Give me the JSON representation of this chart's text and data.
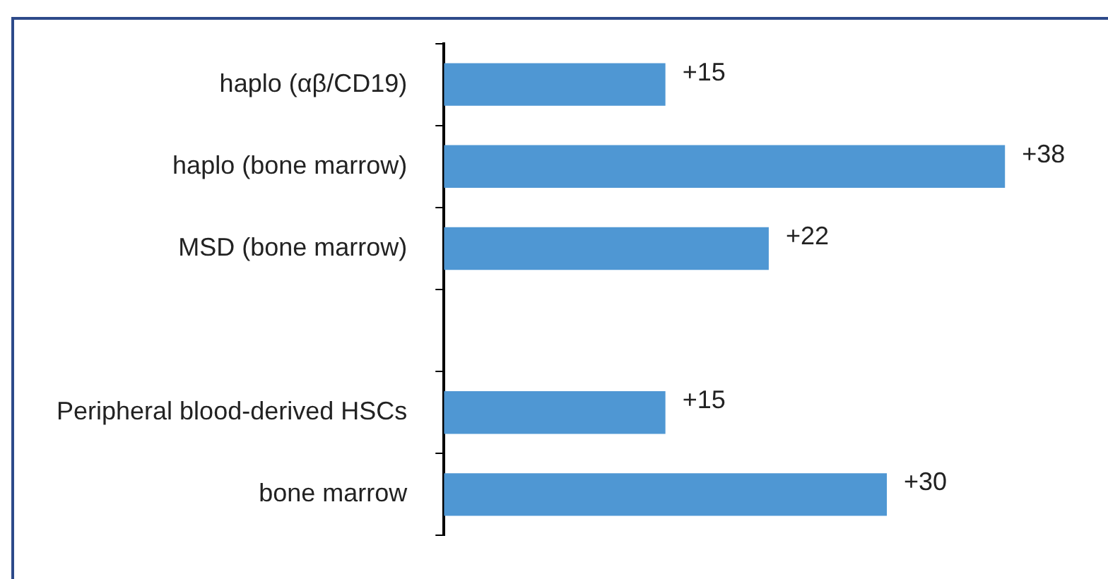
{
  "chart_data": {
    "type": "bar",
    "orientation": "horizontal",
    "categories": [
      "haplo (αβ/CD19)",
      "haplo (bone marrow)",
      "MSD (bone marrow)",
      null,
      "Peripheral blood-derived HSCs",
      "bone marrow"
    ],
    "values": [
      15,
      38,
      22,
      null,
      15,
      30
    ],
    "value_labels": [
      "+15",
      "+38",
      "+22",
      null,
      "+15",
      "+30"
    ],
    "color": "#4f97d3",
    "grid": false,
    "legend": false
  }
}
